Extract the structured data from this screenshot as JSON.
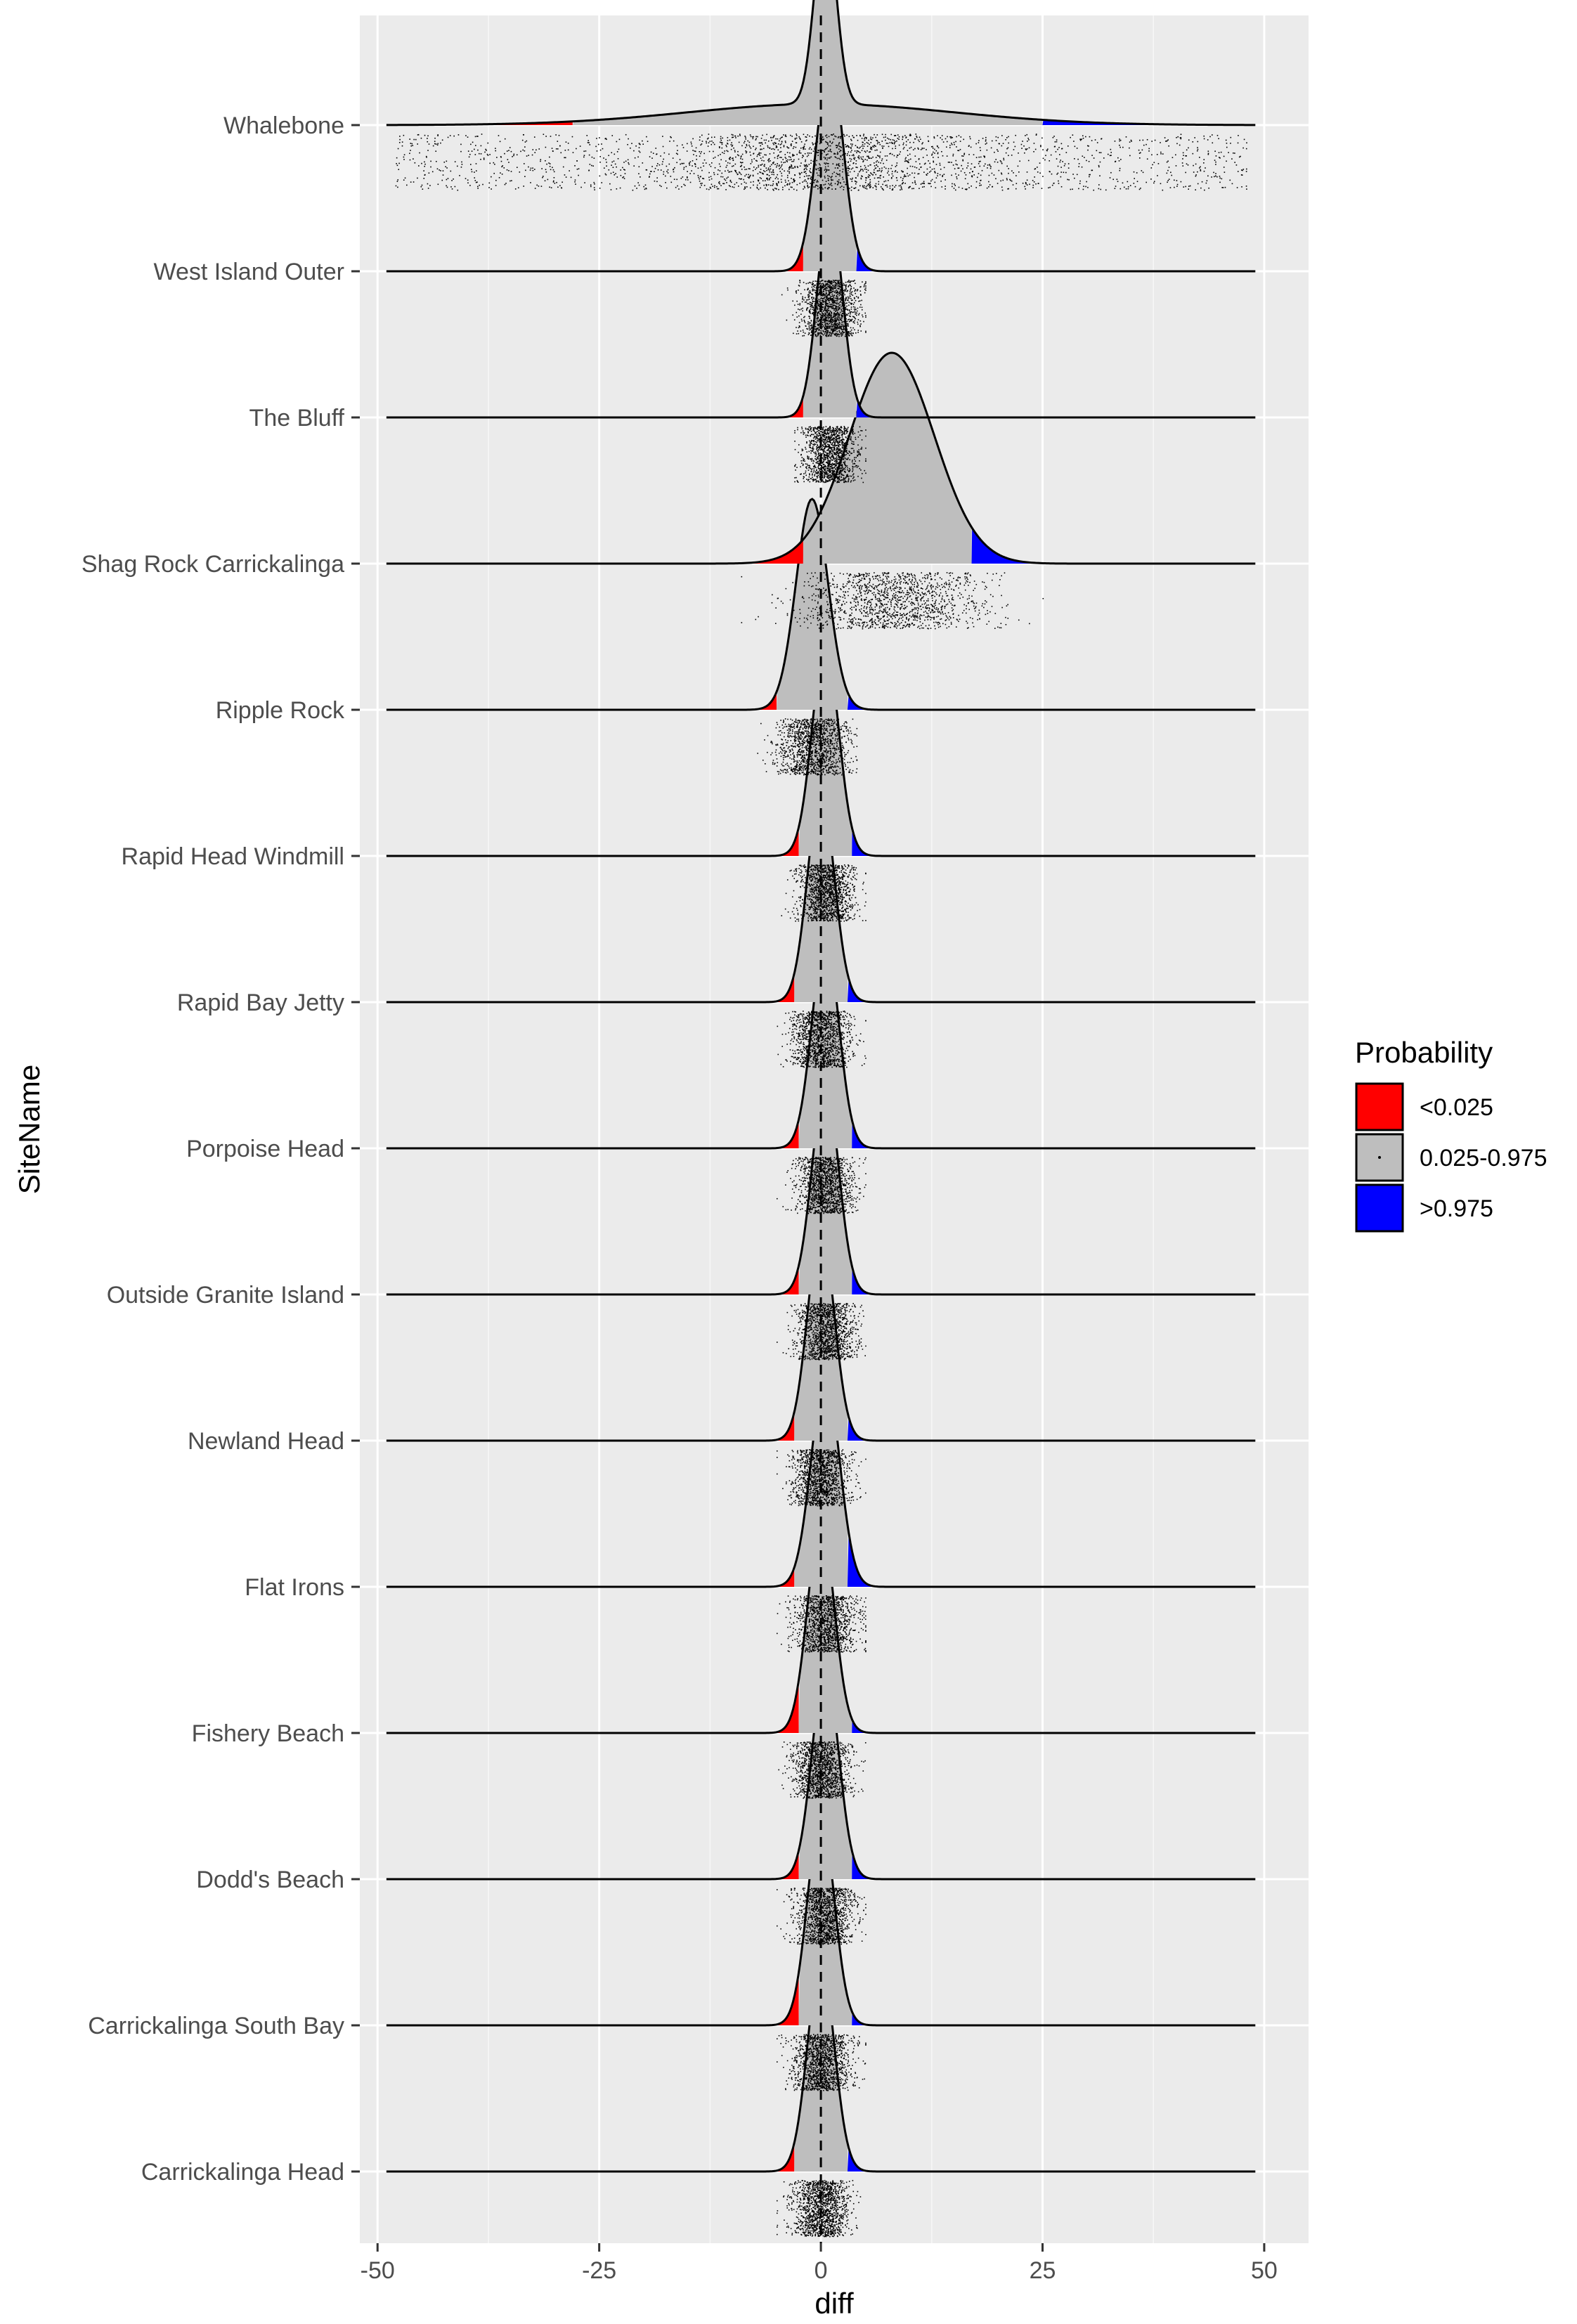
{
  "chart_data": {
    "type": "ridgeline-density-with-jitter",
    "xlabel": "diff",
    "ylabel": "SiteName",
    "xlim": [
      -52,
      55
    ],
    "x_ticks": [
      -50,
      -25,
      0,
      25,
      50
    ],
    "x_tick_labels": [
      "-50",
      "-25",
      "0",
      "25",
      "50"
    ],
    "vline_x": 0,
    "grid": true,
    "legend": {
      "title": "Probability",
      "placement": "right",
      "entries": [
        {
          "label": "<0.025",
          "color": "#ff0000"
        },
        {
          "label": "0.025-0.975",
          "color": "#bebebe"
        },
        {
          "label": ">0.975",
          "color": "#0000ff"
        }
      ]
    },
    "sites": [
      {
        "name": "Whalebone",
        "mu": 0.5,
        "sd": 1.2,
        "broad": {
          "mu": 0,
          "sd": 15,
          "w": 0.1
        },
        "q_low": -28,
        "q_high": 25,
        "x_min": -49,
        "x_max": 49,
        "points_x": [
          -48,
          48
        ]
      },
      {
        "name": "West Island Outer",
        "mu": 1,
        "sd": 1.5,
        "q_low": -2,
        "q_high": 4,
        "x_min": -49,
        "x_max": 49,
        "points_x": [
          -5,
          5
        ]
      },
      {
        "name": "The Bluff",
        "mu": 1,
        "sd": 1.4,
        "q_low": -2,
        "q_high": 4,
        "x_min": -49,
        "x_max": 49,
        "points_x": [
          -3,
          5
        ]
      },
      {
        "name": "Shag Rock Carrickalinga",
        "mu": 8,
        "sd": 4.8,
        "q_low": -2,
        "q_high": 17,
        "x_min": -49,
        "x_max": 49,
        "points_x": [
          -9,
          25
        ]
      },
      {
        "name": "Ripple Rock",
        "mu": -1,
        "sd": 1.8,
        "q_low": -5,
        "q_high": 3,
        "x_min": -49,
        "x_max": 49,
        "points_x": [
          -8,
          4
        ]
      },
      {
        "name": "Rapid Head Windmill",
        "mu": 0.5,
        "sd": 1.5,
        "q_low": -2.5,
        "q_high": 3.5,
        "x_min": -49,
        "x_max": 49,
        "points_x": [
          -5,
          5
        ]
      },
      {
        "name": "Rapid Bay Jetty",
        "mu": 0,
        "sd": 1.5,
        "q_low": -3,
        "q_high": 3,
        "x_min": -49,
        "x_max": 49,
        "points_x": [
          -5,
          5
        ]
      },
      {
        "name": "Porpoise Head",
        "mu": 0.5,
        "sd": 1.5,
        "q_low": -2.5,
        "q_high": 3.5,
        "x_min": -49,
        "x_max": 49,
        "points_x": [
          -5,
          5
        ]
      },
      {
        "name": "Outside Granite Island",
        "mu": 0.5,
        "sd": 1.5,
        "q_low": -2.5,
        "q_high": 3.5,
        "x_min": -49,
        "x_max": 49,
        "points_x": [
          -5,
          5
        ]
      },
      {
        "name": "Newland Head",
        "mu": 0,
        "sd": 1.5,
        "q_low": -3,
        "q_high": 3,
        "x_min": -49,
        "x_max": 49,
        "points_x": [
          -5,
          5
        ]
      },
      {
        "name": "Flat Irons",
        "mu": 0.5,
        "sd": 1.6,
        "q_low": -3,
        "q_high": 3,
        "x_min": -49,
        "x_max": 49,
        "points_x": [
          -5,
          5
        ]
      },
      {
        "name": "Fishery Beach",
        "mu": 0,
        "sd": 1.5,
        "q_low": -2.5,
        "q_high": 3.5,
        "x_min": -49,
        "x_max": 49,
        "points_x": [
          -6,
          5
        ]
      },
      {
        "name": "Dodd's Beach",
        "mu": 0.5,
        "sd": 1.5,
        "q_low": -2.5,
        "q_high": 3.5,
        "x_min": -49,
        "x_max": 49,
        "points_x": [
          -5,
          5
        ]
      },
      {
        "name": "Carrickalinga South Bay",
        "mu": 0,
        "sd": 1.5,
        "q_low": -2.5,
        "q_high": 3.5,
        "x_min": -49,
        "x_max": 49,
        "points_x": [
          -5,
          5
        ]
      },
      {
        "name": "Carrickalinga Head",
        "mu": 0,
        "sd": 1.5,
        "q_low": -3,
        "q_high": 3,
        "x_min": -49,
        "x_max": 49,
        "points_x": [
          -5,
          5
        ]
      }
    ]
  }
}
